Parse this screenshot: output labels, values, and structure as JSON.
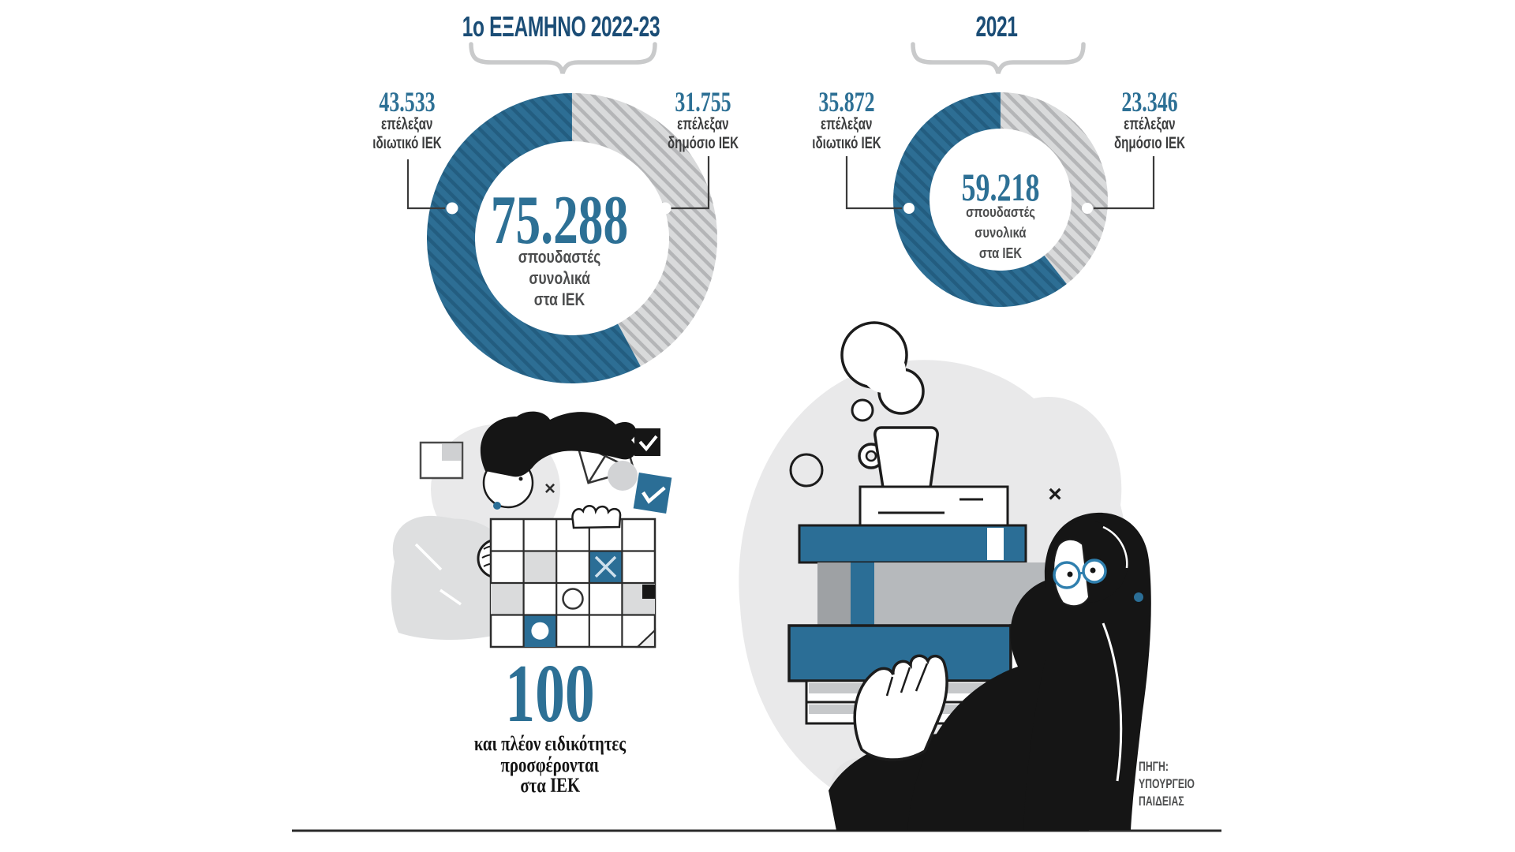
{
  "colors": {
    "blue": "#2b6e96",
    "donut_blue": "#2d6e94",
    "donut_blue_hatch": "#235d80",
    "gray_ring": "#d9dadb",
    "gray_ring_hatch": "#b4b5b7",
    "navy_title": "#1b4d76",
    "number_blue": "#2d7095",
    "text_dark": "#3b3c3d",
    "brace_gray": "#c9cacb"
  },
  "chart_data": [
    {
      "type": "donut",
      "title": "1ο ΕΞΑΜΗΝΟ 2022-23",
      "center": {
        "value": 75288,
        "value_display": "75.288",
        "label_lines": [
          "σπουδαστές",
          "συνολικά",
          "στα ΙΕΚ"
        ]
      },
      "segments": [
        {
          "name": "private-iek",
          "value": 43533,
          "value_display": "43.533",
          "label_line1": "επέλεξαν",
          "label_line2": "ιδιωτικό ΙΕΚ",
          "color": "#2d6e94"
        },
        {
          "name": "public-iek",
          "value": 31755,
          "value_display": "31.755",
          "label_line1": "επέλεξαν",
          "label_line2": "δημόσιο ΙΕΚ",
          "color": "#c9cacb"
        }
      ]
    },
    {
      "type": "donut",
      "title": "2021",
      "center": {
        "value": 59218,
        "value_display": "59.218",
        "label_lines": [
          "σπουδαστές",
          "συνολικά",
          "στα ΙΕΚ"
        ]
      },
      "segments": [
        {
          "name": "private-iek",
          "value": 35872,
          "value_display": "35.872",
          "label_line1": "επέλεξαν",
          "label_line2": "ιδιωτικό ΙΕΚ",
          "color": "#2d6e94"
        },
        {
          "name": "public-iek",
          "value": 23346,
          "value_display": "23.346",
          "label_line1": "επέλεξαν",
          "label_line2": "δημόσιο ΙΕΚ",
          "color": "#c9cacb"
        }
      ]
    }
  ],
  "extra_stat": {
    "value": 100,
    "value_display": "100",
    "lines": [
      "και πλέον ειδικότητες",
      "προσφέρονται",
      "στα ΙΕΚ"
    ]
  },
  "source": {
    "lines": [
      "ΠΗΓΗ:",
      "ΥΠΟΥΡΓΕΙΟ",
      "ΠΑΙΔΕΙΑΣ"
    ]
  },
  "decorations": {
    "x_mark": "×"
  }
}
